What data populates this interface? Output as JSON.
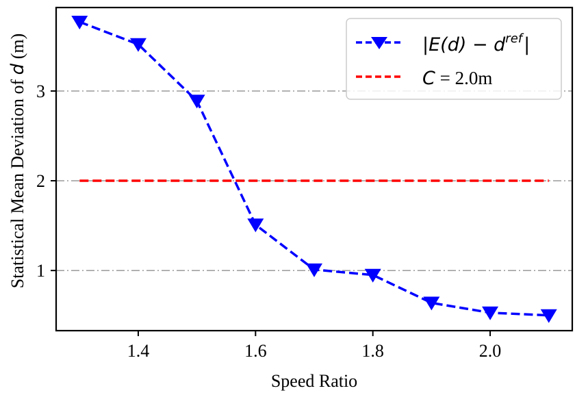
{
  "chart_data": {
    "type": "line",
    "title": "",
    "xlabel": "Speed Ratio",
    "ylabel_prefix": "Statistical Mean Deviation of ",
    "ylabel_var": "d",
    "ylabel_suffix": " (m)",
    "xlim": [
      1.26,
      2.14
    ],
    "ylim": [
      0.33,
      3.93
    ],
    "xticks": [
      1.4,
      1.6,
      1.8,
      2.0
    ],
    "xtick_labels": [
      "1.4",
      "1.6",
      "1.8",
      "2.0"
    ],
    "yticks": [
      1,
      2,
      3
    ],
    "ytick_labels": [
      "1",
      "2",
      "3"
    ],
    "grid": "horizontal dash-dot at y ticks",
    "legend_position": "top-right",
    "series": [
      {
        "name": "|E(d) − d^ref|",
        "legend_main": "|E(d) − d",
        "legend_sup": "ref",
        "legend_close": "|",
        "color": "#0000ff",
        "linestyle": "dashed",
        "marker": "triangle-down",
        "x": [
          1.3,
          1.4,
          1.5,
          1.6,
          1.7,
          1.8,
          1.9,
          2.0,
          2.1
        ],
        "y": [
          3.77,
          3.52,
          2.89,
          1.51,
          1.01,
          0.95,
          0.64,
          0.53,
          0.5
        ]
      },
      {
        "name": "C = 2.0m",
        "legend_var": "C",
        "legend_rest": " = 2.0m",
        "color": "#ff0000",
        "linestyle": "dashed",
        "marker": "none",
        "x": [
          1.3,
          2.1
        ],
        "y": [
          2.0,
          2.0
        ]
      }
    ]
  }
}
